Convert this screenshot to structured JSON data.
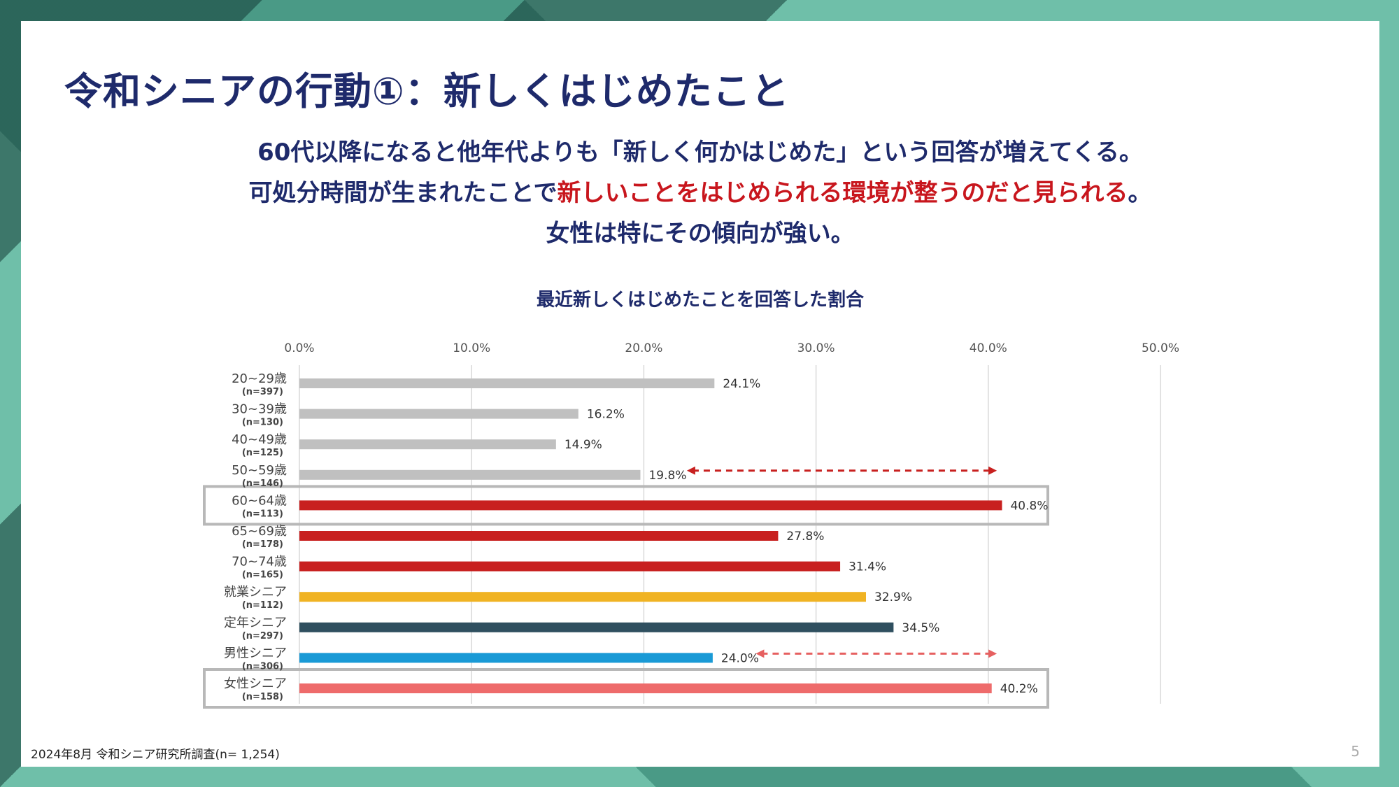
{
  "slide": {
    "title": "令和シニアの行動①：新しくはじめたこと",
    "lead_line1": "60代以降になると他年代よりも「新しく何かはじめた」という回答が増えてくる。",
    "lead_line2_pre": "可処分時間が生まれたことで",
    "lead_line2_red": "新しいことをはじめられる環境が整うのだと見られる",
    "lead_line2_post": "。",
    "lead_line3": "女性は特にその傾向が強い。",
    "footnote": "2024年8月 令和シニア研究所調査(n= 1,254)",
    "page_number": "5"
  },
  "chart_data": {
    "type": "bar",
    "orientation": "horizontal",
    "title": "最近新しくはじめたことを回答した割合",
    "xlim": [
      0,
      50
    ],
    "ticks": [
      "0.0%",
      "10.0%",
      "20.0%",
      "30.0%",
      "40.0%",
      "50.0%"
    ],
    "tick_values": [
      0,
      10,
      20,
      30,
      40,
      50
    ],
    "categories": [
      {
        "label": "20~29歳",
        "n": "(n=397)",
        "value": 24.1,
        "value_label": "24.1%",
        "color": "#c0c0c0"
      },
      {
        "label": "30~39歳",
        "n": "(n=130)",
        "value": 16.2,
        "value_label": "16.2%",
        "color": "#c0c0c0"
      },
      {
        "label": "40~49歳",
        "n": "(n=125)",
        "value": 14.9,
        "value_label": "14.9%",
        "color": "#c0c0c0"
      },
      {
        "label": "50~59歳",
        "n": "(n=146)",
        "value": 19.8,
        "value_label": "19.8%",
        "color": "#c0c0c0"
      },
      {
        "label": "60~64歳",
        "n": "(n=113)",
        "value": 40.8,
        "value_label": "40.8%",
        "color": "#c8201f"
      },
      {
        "label": "65~69歳",
        "n": "(n=178)",
        "value": 27.8,
        "value_label": "27.8%",
        "color": "#c8201f"
      },
      {
        "label": "70~74歳",
        "n": "(n=165)",
        "value": 31.4,
        "value_label": "31.4%",
        "color": "#c8201f"
      },
      {
        "label": "就業シニア",
        "n": "(n=112)",
        "value": 32.9,
        "value_label": "32.9%",
        "color": "#f0b323"
      },
      {
        "label": "定年シニア",
        "n": "(n=297)",
        "value": 34.5,
        "value_label": "34.5%",
        "color": "#2f4f5f"
      },
      {
        "label": "男性シニア",
        "n": "(n=306)",
        "value": 24.0,
        "value_label": "24.0%",
        "color": "#1a9ad6"
      },
      {
        "label": "女性シニア",
        "n": "(n=158)",
        "value": 40.2,
        "value_label": "40.2%",
        "color": "#ee6b6b"
      }
    ],
    "highlight_boxes": [
      4,
      10
    ],
    "comparison_arrows": [
      {
        "row": 3,
        "from_value": 22.5,
        "to_value": 40.5,
        "color": "#c8201f"
      },
      {
        "row": 9,
        "from_value": 26.5,
        "to_value": 40.5,
        "color": "#e66060"
      }
    ]
  }
}
